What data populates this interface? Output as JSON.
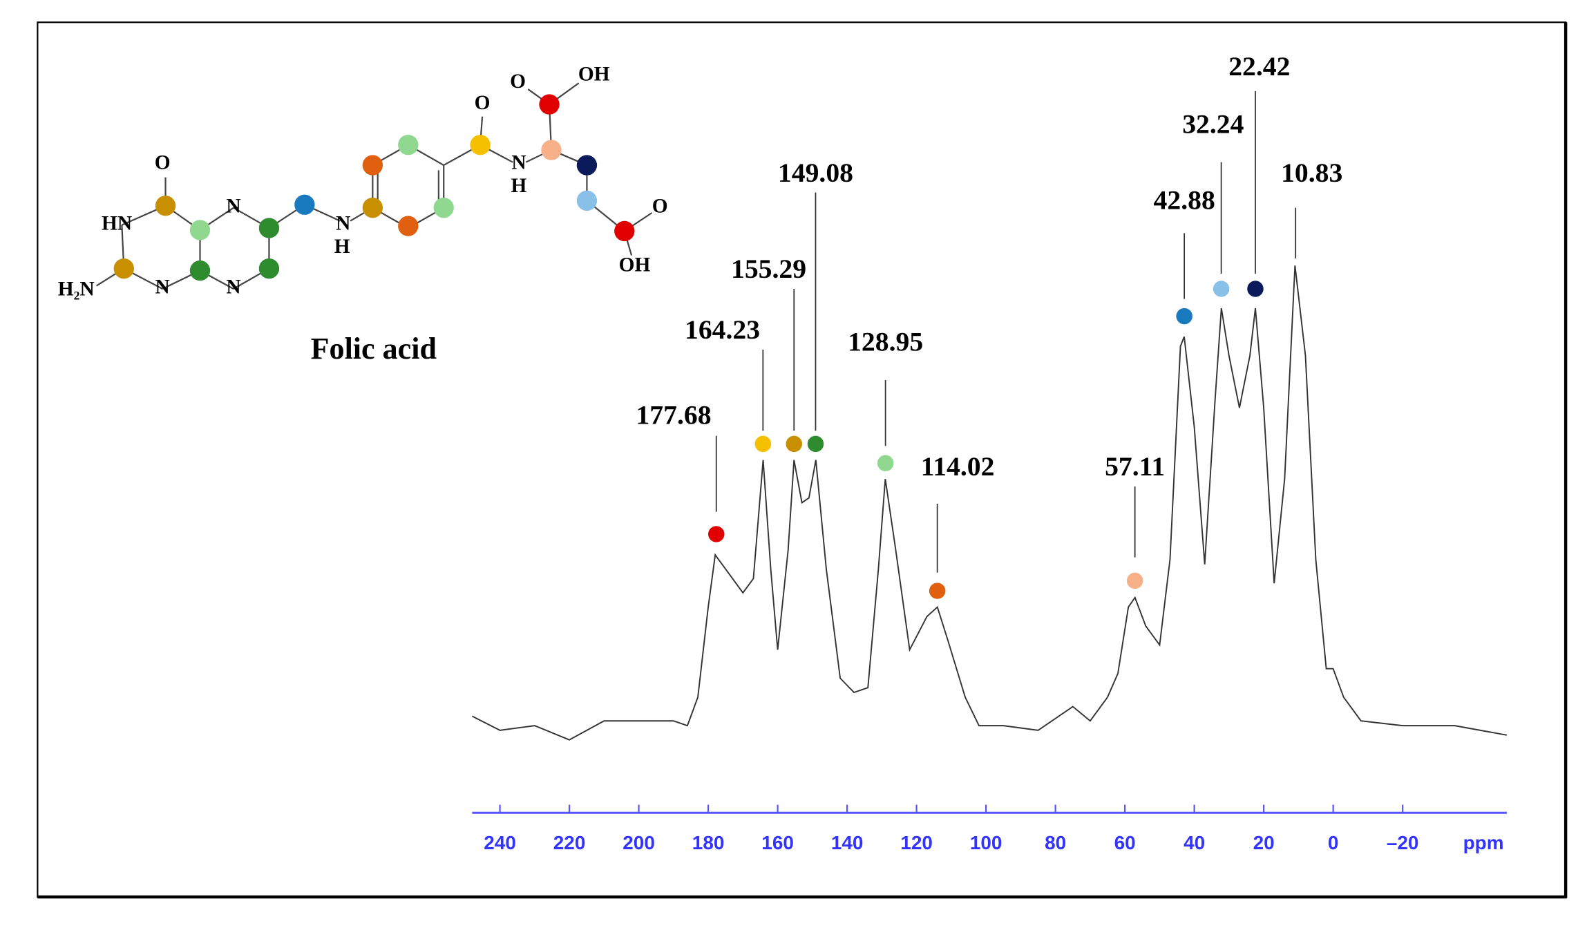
{
  "chart_data": {
    "type": "line",
    "x_label": "ppm",
    "xlim": [
      248,
      -50
    ],
    "xticks": [
      240,
      220,
      200,
      180,
      160,
      140,
      120,
      100,
      80,
      60,
      40,
      20,
      0,
      {
        "value": -20,
        "label": "–20"
      }
    ],
    "ylim": [
      0,
      100
    ],
    "color": "#333333",
    "x": [
      248,
      240,
      230,
      220,
      210,
      200,
      190,
      186,
      183,
      180,
      178,
      176,
      173,
      170,
      167,
      164.2,
      162,
      160,
      157,
      155.3,
      153,
      151,
      149,
      146,
      142,
      138,
      134,
      131,
      129,
      126,
      122,
      117,
      114,
      111,
      106,
      102,
      95,
      85,
      75,
      70,
      65,
      62,
      59,
      57.1,
      54,
      50,
      47,
      44,
      42.9,
      40,
      37,
      34,
      32.2,
      30,
      27,
      24,
      22.4,
      20,
      17,
      14,
      11,
      8,
      5,
      2,
      0,
      -3,
      -8,
      -20,
      -35,
      -50
    ],
    "values": [
      5,
      2,
      3,
      0,
      4,
      4,
      4,
      3,
      9,
      28,
      39,
      37,
      34,
      31,
      34,
      59,
      36,
      19,
      40,
      59,
      50,
      51,
      59,
      36,
      13,
      10,
      11,
      36,
      55,
      40,
      19,
      26,
      28,
      21,
      9,
      3,
      3,
      2,
      7,
      4,
      9,
      14,
      28,
      30,
      24,
      20,
      38,
      83,
      85,
      66,
      37,
      72,
      91,
      81,
      70,
      81,
      91,
      70,
      33,
      55,
      100,
      81,
      38,
      15,
      15,
      9,
      4,
      3,
      3,
      1
    ],
    "peaks": [
      {
        "value": 177.68,
        "color": "#e00000"
      },
      {
        "value": 164.23,
        "color": "#f5c000"
      },
      {
        "value": 155.29,
        "color": "#c89000"
      },
      {
        "value": 149.08,
        "color": "#2e8b2e"
      },
      {
        "value": 128.95,
        "color": "#90d890"
      },
      {
        "value": 114.02,
        "color": "#e06010"
      },
      {
        "value": 57.11,
        "color": "#f8b088"
      },
      {
        "value": 42.88,
        "color": "#1a7ac0"
      },
      {
        "value": 32.24,
        "color": "#88c0e8"
      },
      {
        "value": 22.42,
        "color": "#0a1a5a"
      },
      {
        "value": 10.83
      }
    ]
  },
  "molecule": {
    "name": "Folic acid",
    "atoms": [
      "O",
      "HN",
      "H₂N",
      "N",
      "N",
      "N",
      "N",
      "H",
      "O",
      "N",
      "H",
      "O",
      "OH",
      "O",
      "OH"
    ]
  }
}
